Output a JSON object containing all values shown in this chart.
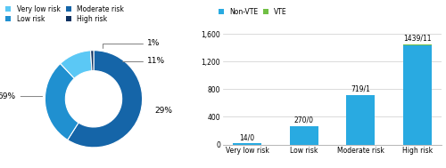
{
  "pie_values": [
    59,
    29,
    11,
    1
  ],
  "pie_colors": [
    "#1565a8",
    "#2090d0",
    "#5bc8f5",
    "#0d3060"
  ],
  "pie_legend_labels": [
    "Very low risk",
    "Low risk",
    "Moderate risk",
    "High risk"
  ],
  "pie_legend_colors": [
    "#5bc8f5",
    "#2090d0",
    "#1565a8",
    "#0d3060"
  ],
  "bar_categories": [
    "Very low risk",
    "Low risk",
    "Moderate risk",
    "High risk"
  ],
  "bar_nonvte": [
    14,
    270,
    719,
    1439
  ],
  "bar_vte": [
    0,
    0,
    1,
    11
  ],
  "bar_labels": [
    "14/0",
    "270/0",
    "719/1",
    "1439/11"
  ],
  "bar_color_nonvte": "#29aae1",
  "bar_color_vte": "#70bf44",
  "bar_legend_labels": [
    "Non-VTE",
    "VTE"
  ],
  "ylim": [
    0,
    1750
  ],
  "yticks": [
    0,
    400,
    800,
    1200,
    1600
  ],
  "background_color": "#ffffff"
}
